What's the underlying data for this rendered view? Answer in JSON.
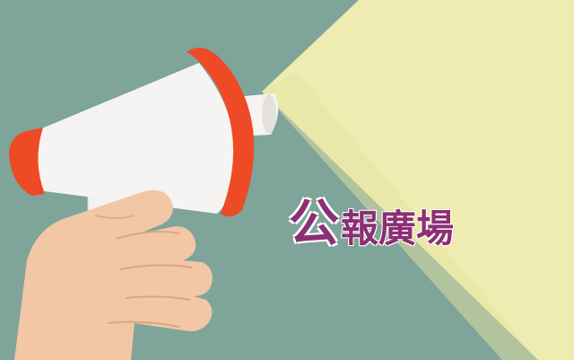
{
  "banner": {
    "title_first_char": "公",
    "title_rest": "報廣場"
  },
  "colors": {
    "background": "#7fa49a",
    "light_beam": "#eeecb0",
    "megaphone_body": "#f6f4f2",
    "megaphone_accent": "#ee4a26",
    "hand": "#f1c7a6",
    "title": "#8c2f72"
  },
  "icons": {
    "megaphone": "megaphone-illustration",
    "hand": "hand-illustration"
  }
}
